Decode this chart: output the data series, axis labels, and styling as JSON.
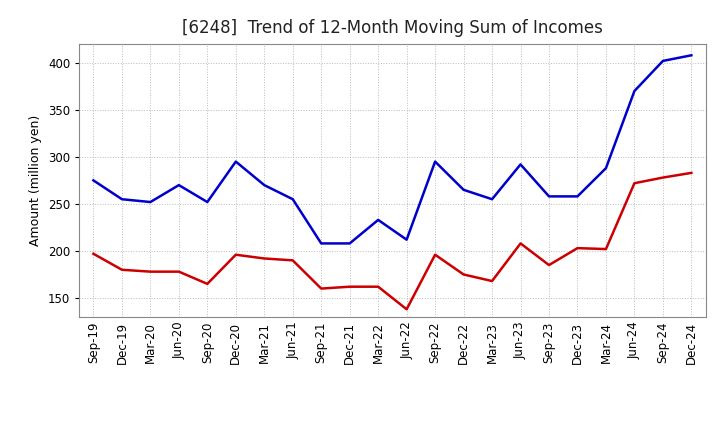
{
  "title": "[6248]  Trend of 12-Month Moving Sum of Incomes",
  "ylabel": "Amount (million yen)",
  "x_labels": [
    "Sep-19",
    "Dec-19",
    "Mar-20",
    "Jun-20",
    "Sep-20",
    "Dec-20",
    "Mar-21",
    "Jun-21",
    "Sep-21",
    "Dec-21",
    "Mar-22",
    "Jun-22",
    "Sep-22",
    "Dec-22",
    "Mar-23",
    "Jun-23",
    "Sep-23",
    "Dec-23",
    "Mar-24",
    "Jun-24",
    "Sep-24",
    "Dec-24"
  ],
  "ordinary_income": [
    275,
    255,
    252,
    270,
    252,
    295,
    270,
    255,
    208,
    208,
    233,
    212,
    295,
    265,
    255,
    292,
    258,
    258,
    288,
    370,
    402,
    408
  ],
  "net_income": [
    197,
    180,
    178,
    178,
    165,
    196,
    192,
    190,
    160,
    162,
    162,
    138,
    196,
    175,
    168,
    208,
    185,
    203,
    202,
    272,
    278,
    283
  ],
  "ordinary_color": "#0000cc",
  "net_color": "#cc0000",
  "ylim": [
    130,
    420
  ],
  "yticks": [
    150,
    200,
    250,
    300,
    350,
    400
  ],
  "bg_color": "#ffffff",
  "grid_color": "#aaaaaa",
  "title_fontsize": 12,
  "label_fontsize": 9,
  "tick_fontsize": 8.5,
  "legend_fontsize": 9.5
}
